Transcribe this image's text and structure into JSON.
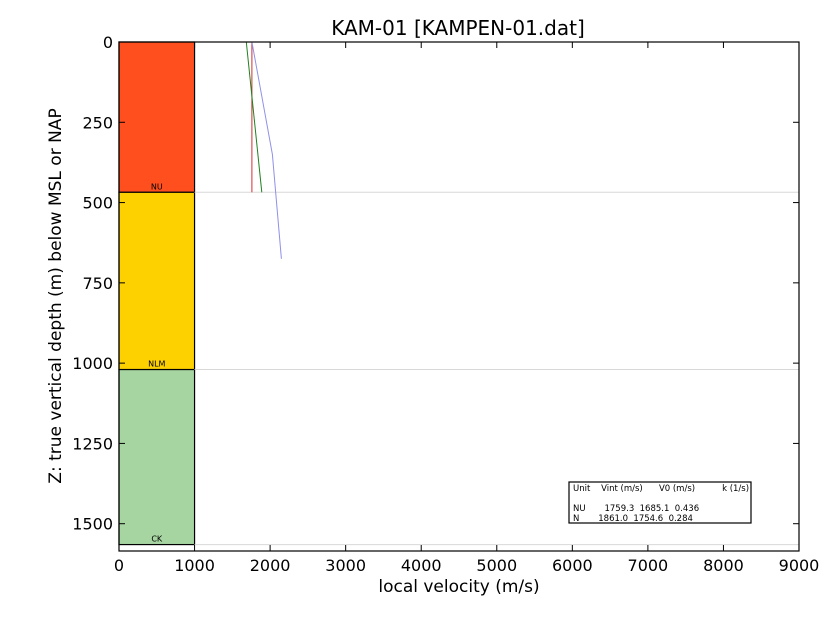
{
  "chart_data": {
    "type": "line",
    "title": "KAM-01 [KAMPEN-01.dat]",
    "xlabel": "local velocity (m/s)",
    "ylabel": "Z: true vertical depth (m) below MSL or NAP",
    "xlim": [
      0,
      9000
    ],
    "ylim": [
      1585,
      0
    ],
    "y_inverted": true,
    "xticks": [
      "0",
      "1000",
      "2000",
      "3000",
      "4000",
      "5000",
      "6000",
      "7000",
      "8000",
      "9000"
    ],
    "yticks": [
      "0",
      "250",
      "500",
      "750",
      "1000",
      "1250",
      "1500"
    ],
    "grid": false,
    "units": [
      {
        "name": "NU",
        "top": 0,
        "base": 468,
        "color": "#ff4f1f"
      },
      {
        "name": "NLM",
        "top": 468,
        "base": 1020,
        "color": "#fdd000"
      },
      {
        "name": "CK",
        "top": 1020,
        "base": 1565,
        "color": "#a7d5a2"
      }
    ],
    "series": [
      {
        "color": "#d03030",
        "x": [
          1759,
          1759
        ],
        "y": [
          0,
          468
        ]
      },
      {
        "color": "#208020",
        "x": [
          1685,
          1890
        ],
        "y": [
          0,
          468
        ]
      },
      {
        "color": "#9090e8",
        "x": [
          1759,
          1875,
          2030,
          2150
        ],
        "y": [
          0,
          150,
          350,
          675
        ]
      }
    ],
    "legend_table": {
      "placement": "lower-right",
      "header": "Unit    Vint (m/s)      V0 (m/s)          k (1/s)",
      "rows": [
        "NU       1759.3  1685.1  0.436",
        "N       1861.0  1754.6  0.284"
      ]
    }
  }
}
